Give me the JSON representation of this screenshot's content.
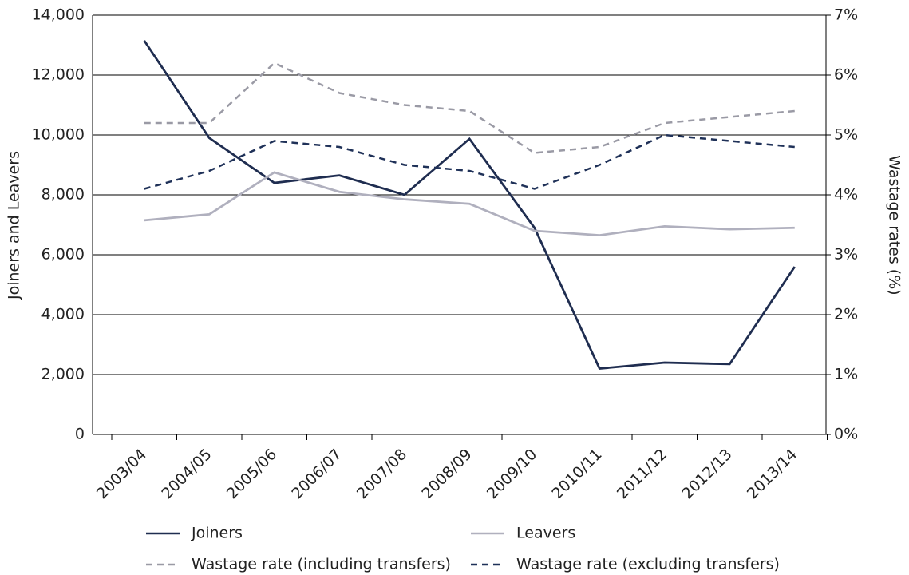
{
  "chart_data": {
    "type": "line",
    "categories": [
      "2003/04",
      "2004/05",
      "2005/06",
      "2006/07",
      "2007/08",
      "2008/09",
      "2009/10",
      "2010/11",
      "2011/12",
      "2012/13",
      "2013/14"
    ],
    "y_label": "Joiners and Leavers",
    "y2_label": "Wastage rates (%)",
    "ylim": [
      0,
      14000
    ],
    "yticks": [
      0,
      {
        "value": 2000,
        "label": "2,000"
      },
      {
        "value": 4000,
        "label": "4,000"
      },
      {
        "value": 6000,
        "label": "6,000"
      },
      {
        "value": 8000,
        "label": "8,000"
      },
      {
        "value": 10000,
        "label": "10,000"
      },
      {
        "value": 12000,
        "label": "12,000"
      },
      {
        "value": 14000,
        "label": "14,000"
      }
    ],
    "y2lim": [
      0,
      7
    ],
    "y2ticks": [
      {
        "value": 0,
        "label": "0%"
      },
      {
        "value": 1,
        "label": "1%"
      },
      {
        "value": 2,
        "label": "2%"
      },
      {
        "value": 3,
        "label": "3%"
      },
      {
        "value": 4,
        "label": "4%"
      },
      {
        "value": 5,
        "label": "5%"
      },
      {
        "value": 6,
        "label": "6%"
      },
      {
        "value": 7,
        "label": "7%"
      }
    ],
    "grid": true,
    "series": [
      {
        "name": "Joiners",
        "color": "#1f2d50",
        "dashed": false,
        "values": [
          13150,
          9900,
          8400,
          8650,
          8000,
          9870,
          6900,
          2200,
          2400,
          2350,
          5600
        ]
      },
      {
        "name": "Leavers",
        "color": "#b0b0be",
        "dashed": false,
        "values": [
          7150,
          7350,
          8750,
          8100,
          7850,
          7700,
          6800,
          6650,
          6950,
          6850,
          6900
        ]
      },
      {
        "name": "Wastage rate (including transfers)",
        "color": "#9a9aa5",
        "dashed": true,
        "axis": "y2",
        "values": [
          5.2,
          5.2,
          6.2,
          5.7,
          5.5,
          5.4,
          4.7,
          4.8,
          5.2,
          5.3,
          5.4
        ]
      },
      {
        "name": "Wastage rate (excluding transfers)",
        "color": "#1f3158",
        "dashed": true,
        "axis": "y2",
        "values": [
          4.1,
          4.4,
          4.9,
          4.8,
          4.5,
          4.4,
          4.1,
          4.5,
          5.0,
          4.9,
          4.8
        ]
      }
    ]
  }
}
